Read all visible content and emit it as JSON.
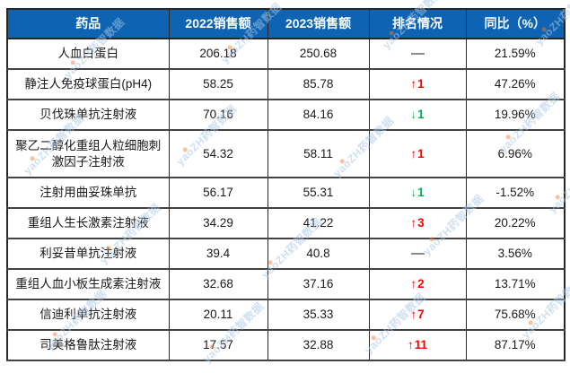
{
  "watermark": {
    "text": "yaoZH药智数据"
  },
  "colors": {
    "header_bg": "#0E63B3",
    "rank_up": "#FE0000",
    "rank_down": "#00B050",
    "watermark": "#A9C7E7",
    "watermark_dot": "#ED7D31"
  },
  "table": {
    "headers": [
      "药品",
      "2022销售额",
      "2023销售额",
      "排名情况",
      "同比（%）"
    ],
    "rows": [
      {
        "drug": "人血白蛋白",
        "sales_2022": "206.18",
        "sales_2023": "250.68",
        "rank": {
          "arrow": "—",
          "value": "",
          "dir": "none"
        },
        "yoy": "21.59%"
      },
      {
        "drug": "静注人免疫球蛋白(pH4)",
        "sales_2022": "58.25",
        "sales_2023": "85.78",
        "rank": {
          "arrow": "↑",
          "value": "1",
          "dir": "up"
        },
        "yoy": "47.26%"
      },
      {
        "drug": "贝伐珠单抗注射液",
        "sales_2022": "70.16",
        "sales_2023": "84.16",
        "rank": {
          "arrow": "↓",
          "value": "1",
          "dir": "down"
        },
        "yoy": "19.96%"
      },
      {
        "drug": "聚乙二醇化重组人粒细胞刺激因子注射液",
        "sales_2022": "54.32",
        "sales_2023": "58.11",
        "rank": {
          "arrow": "↑",
          "value": "1",
          "dir": "up"
        },
        "yoy": "6.96%"
      },
      {
        "drug": "注射用曲妥珠单抗",
        "sales_2022": "56.17",
        "sales_2023": "55.31",
        "rank": {
          "arrow": "↓",
          "value": "1",
          "dir": "down"
        },
        "yoy": "-1.52%"
      },
      {
        "drug": "重组人生长激素注射液",
        "sales_2022": "34.29",
        "sales_2023": "41.22",
        "rank": {
          "arrow": "↑",
          "value": "3",
          "dir": "up"
        },
        "yoy": "20.22%"
      },
      {
        "drug": "利妥昔单抗注射液",
        "sales_2022": "39.4",
        "sales_2023": "40.8",
        "rank": {
          "arrow": "—",
          "value": "",
          "dir": "none"
        },
        "yoy": "3.56%"
      },
      {
        "drug": "重组人血小板生成素注射液",
        "sales_2022": "32.68",
        "sales_2023": "37.16",
        "rank": {
          "arrow": "↑",
          "value": "2",
          "dir": "up"
        },
        "yoy": "13.71%"
      },
      {
        "drug": "信迪利单抗注射液",
        "sales_2022": "20.11",
        "sales_2023": "35.33",
        "rank": {
          "arrow": "↑",
          "value": "7",
          "dir": "up"
        },
        "yoy": "75.68%"
      },
      {
        "drug": "司美格鲁肽注射液",
        "sales_2022": "17.57",
        "sales_2023": "32.88",
        "rank": {
          "arrow": "↑",
          "value": "11",
          "dir": "up"
        },
        "yoy": "87.17%"
      }
    ]
  },
  "chart_data": {
    "type": "table",
    "title": "",
    "columns": [
      "药品",
      "2022销售额",
      "2023销售额",
      "排名情况",
      "同比（%）"
    ],
    "rows": [
      [
        "人血白蛋白",
        206.18,
        250.68,
        "—",
        "21.59%"
      ],
      [
        "静注人免疫球蛋白(pH4)",
        58.25,
        85.78,
        "↑1",
        "47.26%"
      ],
      [
        "贝伐珠单抗注射液",
        70.16,
        84.16,
        "↓1",
        "19.96%"
      ],
      [
        "聚乙二醇化重组人粒细胞刺激因子注射液",
        54.32,
        58.11,
        "↑1",
        "6.96%"
      ],
      [
        "注射用曲妥珠单抗",
        56.17,
        55.31,
        "↓1",
        "-1.52%"
      ],
      [
        "重组人生长激素注射液",
        34.29,
        41.22,
        "↑3",
        "20.22%"
      ],
      [
        "利妥昔单抗注射液",
        39.4,
        40.8,
        "—",
        "3.56%"
      ],
      [
        "重组人血小板生成素注射液",
        32.68,
        37.16,
        "↑2",
        "13.71%"
      ],
      [
        "信迪利单抗注射液",
        20.11,
        35.33,
        "↑7",
        "75.68%"
      ],
      [
        "司美格鲁肽注射液",
        17.57,
        32.88,
        "↑11",
        "87.17%"
      ]
    ]
  }
}
